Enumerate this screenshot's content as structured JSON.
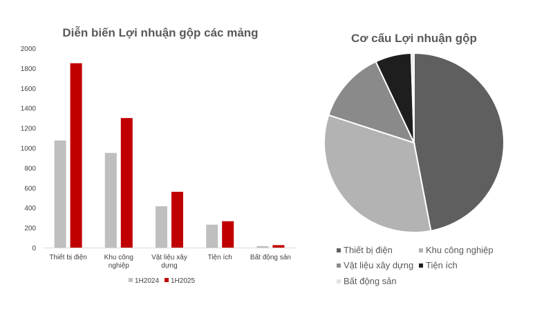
{
  "chart_data": [
    {
      "type": "bar",
      "title": "Diễn biến Lợi nhuận gộp các mảng",
      "categories": [
        "Thiết bị điện",
        "Khu công nghiệp",
        "Vật liệu xây dựng",
        "Tiện ích",
        "Bất động sản"
      ],
      "category_lines": [
        [
          "Thiết bị điện"
        ],
        [
          "Khu công",
          "nghiệp"
        ],
        [
          "Vật liệu xây",
          "dựng"
        ],
        [
          "Tiện ích"
        ],
        [
          "Bất động sản"
        ]
      ],
      "series": [
        {
          "name": "1H2024",
          "color": "#bfbfbf",
          "values": [
            1075,
            950,
            415,
            230,
            15
          ]
        },
        {
          "name": "1H2025",
          "color": "#c00000",
          "values": [
            1850,
            1300,
            560,
            265,
            25
          ]
        }
      ],
      "ylim": [
        0,
        2000
      ],
      "yticks": [
        0,
        200,
        400,
        600,
        800,
        1000,
        1200,
        1400,
        1600,
        1800,
        2000
      ],
      "grid": false,
      "legend": "bottom"
    },
    {
      "type": "pie",
      "title": "Cơ cấu Lợi nhuận gộp",
      "labels": [
        "Thiết bị điện",
        "Khu công nghiệp",
        "Vật liệu xây dựng",
        "Tiện ích",
        "Bất động sản"
      ],
      "values": [
        47,
        33,
        13,
        6.5,
        0.5
      ],
      "colors": [
        "#5f5f5f",
        "#b3b3b3",
        "#8a8a8a",
        "#1e1e1e",
        "#e3e3e3"
      ],
      "legend": "bottom"
    }
  ]
}
